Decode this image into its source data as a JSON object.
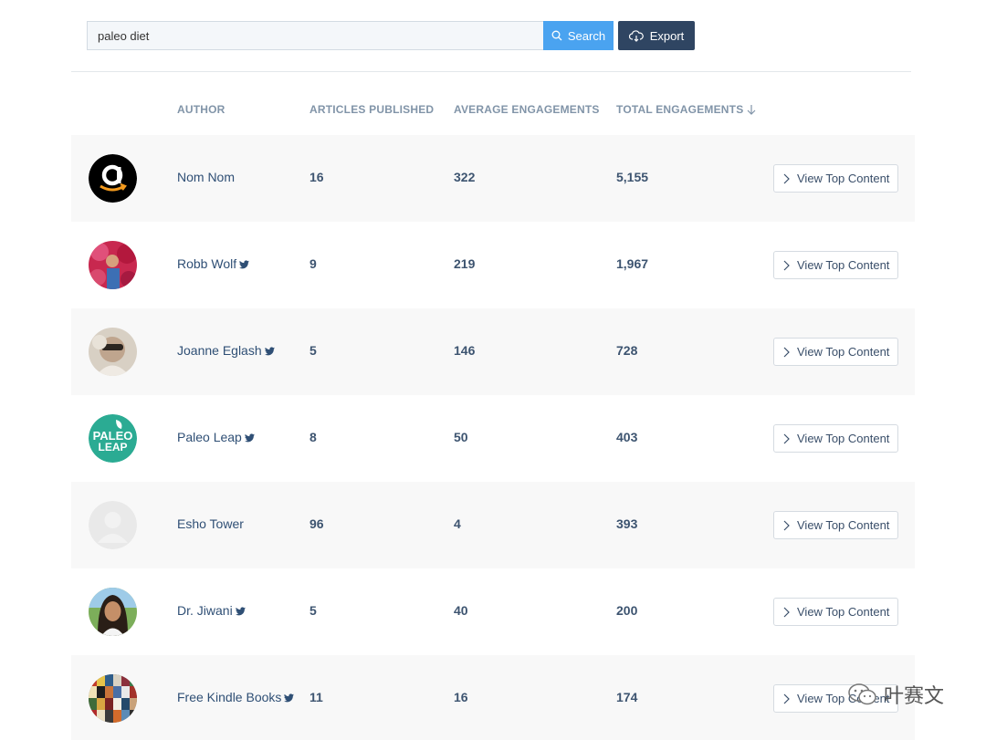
{
  "search": {
    "value": "paleo diet",
    "button_label": "Search"
  },
  "export": {
    "label": "Export"
  },
  "columns": {
    "author": "AUTHOR",
    "articles": "ARTICLES PUBLISHED",
    "avg": "AVERAGE ENGAGEMENTS",
    "total": "TOTAL ENGAGEMENTS"
  },
  "rows": [
    {
      "author": "Nom Nom",
      "twitter": false,
      "articles": "16",
      "avg": "322",
      "total": "5,155",
      "action": "View Top Content"
    },
    {
      "author": "Robb Wolf",
      "twitter": true,
      "articles": "9",
      "avg": "219",
      "total": "1,967",
      "action": "View Top Content"
    },
    {
      "author": "Joanne Eglash",
      "twitter": true,
      "articles": "5",
      "avg": "146",
      "total": "728",
      "action": "View Top Content"
    },
    {
      "author": "Paleo Leap",
      "twitter": true,
      "articles": "8",
      "avg": "50",
      "total": "403",
      "action": "View Top Content"
    },
    {
      "author": "Esho Tower",
      "twitter": false,
      "articles": "96",
      "avg": "4",
      "total": "393",
      "action": "View Top Content"
    },
    {
      "author": "Dr. Jiwani",
      "twitter": true,
      "articles": "5",
      "avg": "40",
      "total": "200",
      "action": "View Top Content"
    },
    {
      "author": "Free Kindle Books",
      "twitter": true,
      "articles": "11",
      "avg": "16",
      "total": "174",
      "action": "View Top Content"
    }
  ],
  "avatar_logo_text": [
    "PALEO",
    "LEAP"
  ],
  "watermark": "叶赛文",
  "colors": {
    "search_button": "#4aa3f0",
    "export_button": "#2f4562",
    "header_text": "#8194a8",
    "row_shade": "#f8f8f8"
  },
  "icons": [
    "search-icon",
    "cloud-download-icon",
    "sort-down-arrow-icon",
    "twitter-icon",
    "chevron-right-icon"
  ]
}
